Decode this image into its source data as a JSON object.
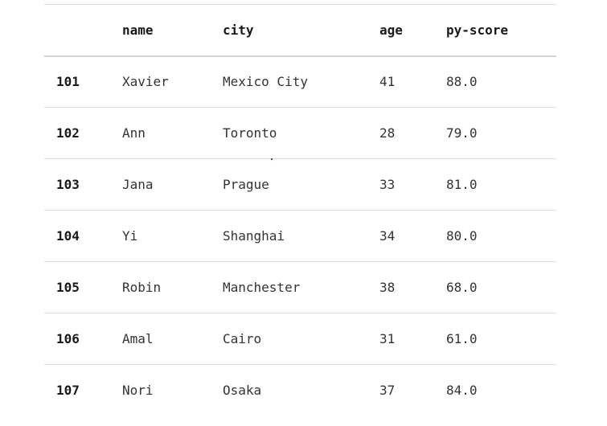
{
  "table": {
    "columns": [
      "",
      "name",
      "city",
      "age",
      "py-score"
    ],
    "rows": [
      {
        "index": "101",
        "name": "Xavier",
        "city": "Mexico City",
        "age": "41",
        "py_score": "88.0"
      },
      {
        "index": "102",
        "name": "Ann",
        "city": "Toronto",
        "age": "28",
        "py_score": "79.0"
      },
      {
        "index": "103",
        "name": "Jana",
        "city": "Prague",
        "age": "33",
        "py_score": "81.0"
      },
      {
        "index": "104",
        "name": "Yi",
        "city": "Shanghai",
        "age": "34",
        "py_score": "80.0"
      },
      {
        "index": "105",
        "name": "Robin",
        "city": "Manchester",
        "age": "38",
        "py_score": "68.0"
      },
      {
        "index": "106",
        "name": "Amal",
        "city": "Cairo",
        "age": "31",
        "py_score": "61.0"
      },
      {
        "index": "107",
        "name": "Nori",
        "city": "Osaka",
        "age": "37",
        "py_score": "84.0"
      }
    ]
  }
}
